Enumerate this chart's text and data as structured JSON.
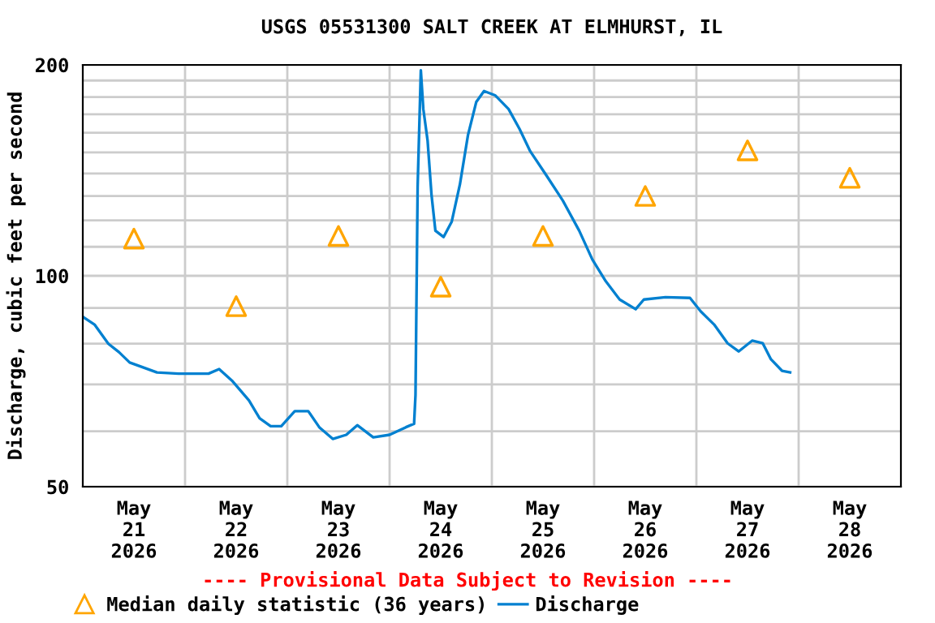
{
  "chart_data": {
    "type": "line",
    "title": "USGS 05531300 SALT CREEK AT ELMHURST, IL",
    "ylabel": "Discharge, cubic feet per second",
    "annotations": [
      "---- Provisional Data Subject to Revision ----"
    ],
    "log": "y",
    "grid": true,
    "legend": "bottom",
    "xlim": [
      "2026-05-21T00:00",
      "2026-05-29T00:00"
    ],
    "xticks": [
      {
        "value": "2026-05-21T12:00",
        "label": "May\n21\n2026"
      },
      {
        "value": "2026-05-22T00:00",
        "label": null
      },
      {
        "value": "2026-05-22T12:00",
        "label": "May\n22\n2026"
      },
      {
        "value": "2026-05-23T00:00",
        "label": null
      },
      {
        "value": "2026-05-23T12:00",
        "label": "May\n23\n2026"
      },
      {
        "value": "2026-05-24T00:00",
        "label": null
      },
      {
        "value": "2026-05-24T12:00",
        "label": "May\n24\n2026"
      },
      {
        "value": "2026-05-25T00:00",
        "label": null
      },
      {
        "value": "2026-05-25T12:00",
        "label": "May\n25\n2026"
      },
      {
        "value": "2026-05-26T00:00",
        "label": null
      },
      {
        "value": "2026-05-26T12:00",
        "label": "May\n26\n2026"
      },
      {
        "value": "2026-05-27T00:00",
        "label": null
      },
      {
        "value": "2026-05-27T12:00",
        "label": "May\n27\n2026"
      },
      {
        "value": "2026-05-28T00:00",
        "label": null
      },
      {
        "value": "2026-05-28T12:00",
        "label": "May\n28\n2026"
      }
    ],
    "ylim": [
      50,
      200
    ],
    "yticks": [
      50,
      {
        "value": 60,
        "label": null
      },
      {
        "value": 70,
        "label": null
      },
      {
        "value": 80,
        "label": null
      },
      {
        "value": 90,
        "label": null
      },
      100,
      {
        "value": 110,
        "label": null
      },
      {
        "value": 120,
        "label": null
      },
      {
        "value": 130,
        "label": null
      },
      {
        "value": 140,
        "label": null
      },
      {
        "value": 150,
        "label": null
      },
      {
        "value": 160,
        "label": null
      },
      {
        "value": 170,
        "label": null
      },
      {
        "value": 180,
        "label": null
      },
      {
        "value": 190,
        "label": null
      },
      200
    ],
    "series": [
      {
        "name": "Median daily statistic (36 years)",
        "type": "scatter",
        "marker": "triangle",
        "color": "#ffa500",
        "x": [
          "2026-05-21T12:00",
          "2026-05-22T12:00",
          "2026-05-23T12:00",
          "2026-05-24T12:00",
          "2026-05-25T12:00",
          "2026-05-26T12:00",
          "2026-05-27T12:00",
          "2026-05-28T12:00"
        ],
        "values": [
          113,
          90.5,
          114,
          96.5,
          114,
          130,
          151,
          138
        ]
      },
      {
        "name": "Discharge",
        "marker": "none",
        "line_style": "solid",
        "color": "#0080d0",
        "x": [
          "2026-05-21T00:15",
          "2026-05-21T02:45",
          "2026-05-21T06:00",
          "2026-05-21T08:30",
          "2026-05-21T11:00",
          "2026-05-21T17:25",
          "2026-05-21T22:30",
          "2026-05-22T05:30",
          "2026-05-22T08:00",
          "2026-05-22T11:10",
          "2026-05-22T15:00",
          "2026-05-22T17:30",
          "2026-05-22T20:05",
          "2026-05-22T22:35",
          "2026-05-23T01:45",
          "2026-05-23T04:55",
          "2026-05-23T07:30",
          "2026-05-23T10:40",
          "2026-05-23T13:50",
          "2026-05-23T16:25",
          "2026-05-23T20:10",
          "2026-05-24T00:00",
          "2026-05-24T03:50",
          "2026-05-24T05:45",
          "2026-05-24T06:05",
          "2026-05-24T06:35",
          "2026-05-24T07:20",
          "2026-05-24T07:55",
          "2026-05-24T08:55",
          "2026-05-24T09:50",
          "2026-05-24T10:45",
          "2026-05-24T12:40",
          "2026-05-24T14:35",
          "2026-05-24T16:30",
          "2026-05-24T18:25",
          "2026-05-24T20:20",
          "2026-05-24T22:10",
          "2026-05-25T00:45",
          "2026-05-25T03:55",
          "2026-05-25T06:30",
          "2026-05-25T09:00",
          "2026-05-25T12:50",
          "2026-05-25T16:40",
          "2026-05-25T20:30",
          "2026-05-25T23:35",
          "2026-05-26T02:45",
          "2026-05-26T06:00",
          "2026-05-26T09:45",
          "2026-05-26T11:40",
          "2026-05-26T16:45",
          "2026-05-26T22:30",
          "2026-05-27T01:00",
          "2026-05-27T04:10",
          "2026-05-27T07:20",
          "2026-05-27T09:55",
          "2026-05-27T13:05",
          "2026-05-27T15:35",
          "2026-05-27T17:30",
          "2026-05-27T20:05",
          "2026-05-27T22:00"
        ],
        "values": [
          87.2,
          85.2,
          80,
          77.8,
          75.2,
          72.8,
          72.5,
          72.5,
          73.6,
          70.7,
          66.4,
          62.6,
          61,
          61,
          64.1,
          64.1,
          60.8,
          58.5,
          59.3,
          61.2,
          58.8,
          59.3,
          60.8,
          61.5,
          67.6,
          134,
          196.5,
          173,
          156,
          130.6,
          116,
          113.6,
          119.5,
          135,
          159,
          177,
          183.5,
          181,
          173,
          162,
          150.6,
          139,
          128,
          116,
          105.5,
          98.2,
          92.5,
          89.6,
          92.5,
          93.2,
          93,
          89,
          85.2,
          80.1,
          78,
          80.8,
          80.1,
          76,
          73.2,
          72.8
        ]
      }
    ]
  }
}
